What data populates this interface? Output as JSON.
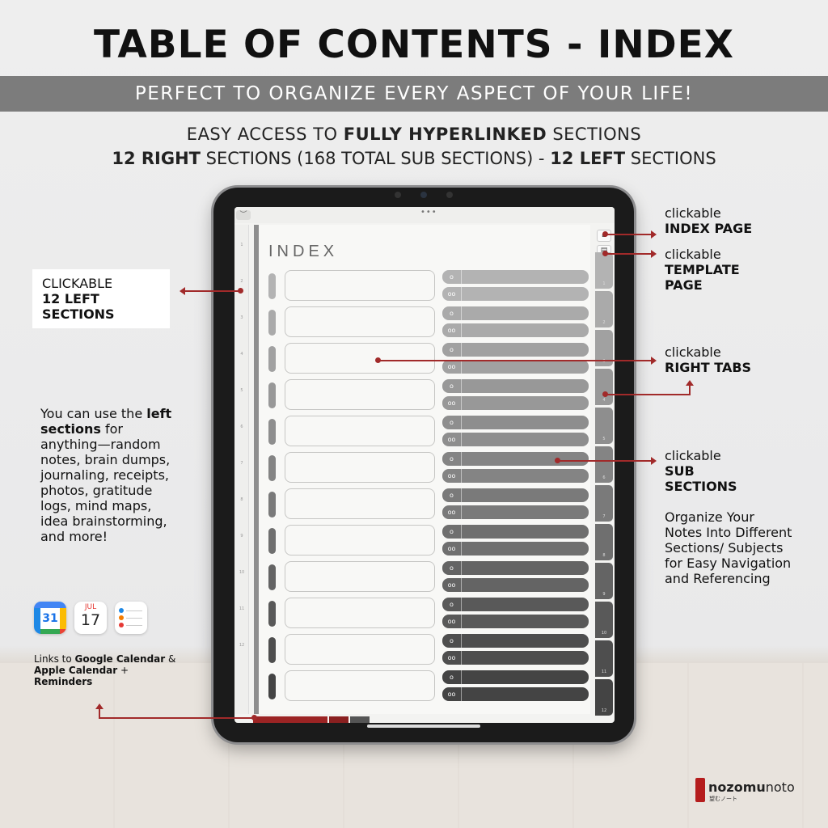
{
  "title": "TABLE OF CONTENTS - INDEX",
  "banner": "PERFECT TO ORGANIZE EVERY ASPECT OF YOUR LIFE!",
  "subtitle1": {
    "a": "EASY ACCESS TO ",
    "b": "FULLY HYPERLINKED",
    "c": " SECTIONS"
  },
  "subtitle2": {
    "a": "12 RIGHT",
    "b": " SECTIONS (168 TOTAL SUB SECTIONS) - ",
    "c": "12 LEFT",
    "d": " SECTIONS"
  },
  "screen": {
    "page_title": "INDEX",
    "dots": "•••",
    "chevron": "︶",
    "left_numbers": [
      "1",
      "2",
      "3",
      "4",
      "5",
      "6",
      "7",
      "8",
      "9",
      "10",
      "11",
      "12"
    ],
    "right_tab_numbers": [
      "1",
      "2",
      "3",
      "4",
      "5",
      "6",
      "7",
      "8",
      "9",
      "10",
      "11",
      "12"
    ],
    "sub_tag_1": "o",
    "sub_tag_2": "oo",
    "row_colors": [
      "#b3b3b3",
      "#aaaaaa",
      "#a1a1a1",
      "#989898",
      "#8e8e8e",
      "#848484",
      "#7a7a7a",
      "#6f6f6f",
      "#646464",
      "#595959",
      "#4e4e4e",
      "#444444"
    ],
    "home_icon": "⌂",
    "template_icon": "▤"
  },
  "annotations": {
    "left_sections": {
      "line1": "CLICKABLE",
      "line2": "12 LEFT SECTIONS"
    },
    "index_page": {
      "line1": "clickable",
      "line2": "INDEX PAGE"
    },
    "template_page": {
      "line1": "clickable",
      "line2": "TEMPLATE",
      "line3": "PAGE"
    },
    "right_tabs": {
      "line1": "clickable",
      "line2": "RIGHT TABS"
    },
    "sub_sections": {
      "line1": "clickable",
      "line2": "SUB",
      "line3": "SECTIONS"
    },
    "organize": [
      "Organize Your",
      "Notes Into Different",
      "Sections/ Subjects",
      "for Easy Navigation",
      "and Referencing"
    ],
    "left_desc": {
      "a": "You can use the ",
      "b": "left",
      "c": "sections",
      "d": " for",
      "rest": [
        "anything—random",
        "notes, brain dumps,",
        "journaling, receipts,",
        "photos, gratitude",
        "logs, mind maps,",
        "idea brainstorming,",
        "and more!"
      ]
    },
    "links": {
      "a": "Links to ",
      "b": "Google Calendar",
      "c": " &",
      "d": "Apple Calendar",
      "e": " +",
      "f": "Reminders"
    }
  },
  "apps": {
    "google_calendar": {
      "icon": "google-calendar-icon",
      "day": "31"
    },
    "apple_calendar": {
      "icon": "apple-calendar-icon",
      "month": "JUL",
      "day": "17"
    },
    "reminders": {
      "icon": "reminders-icon",
      "dot_colors": [
        "#1e88e5",
        "#f57c00",
        "#e53935"
      ]
    }
  },
  "brand": {
    "name_bold": "nozomu",
    "name_light": "noto",
    "tagline": "望むノート",
    "color": "#b51d1d"
  },
  "colors": {
    "accent": "#a12a2a",
    "banner": "#7c7c7c"
  }
}
